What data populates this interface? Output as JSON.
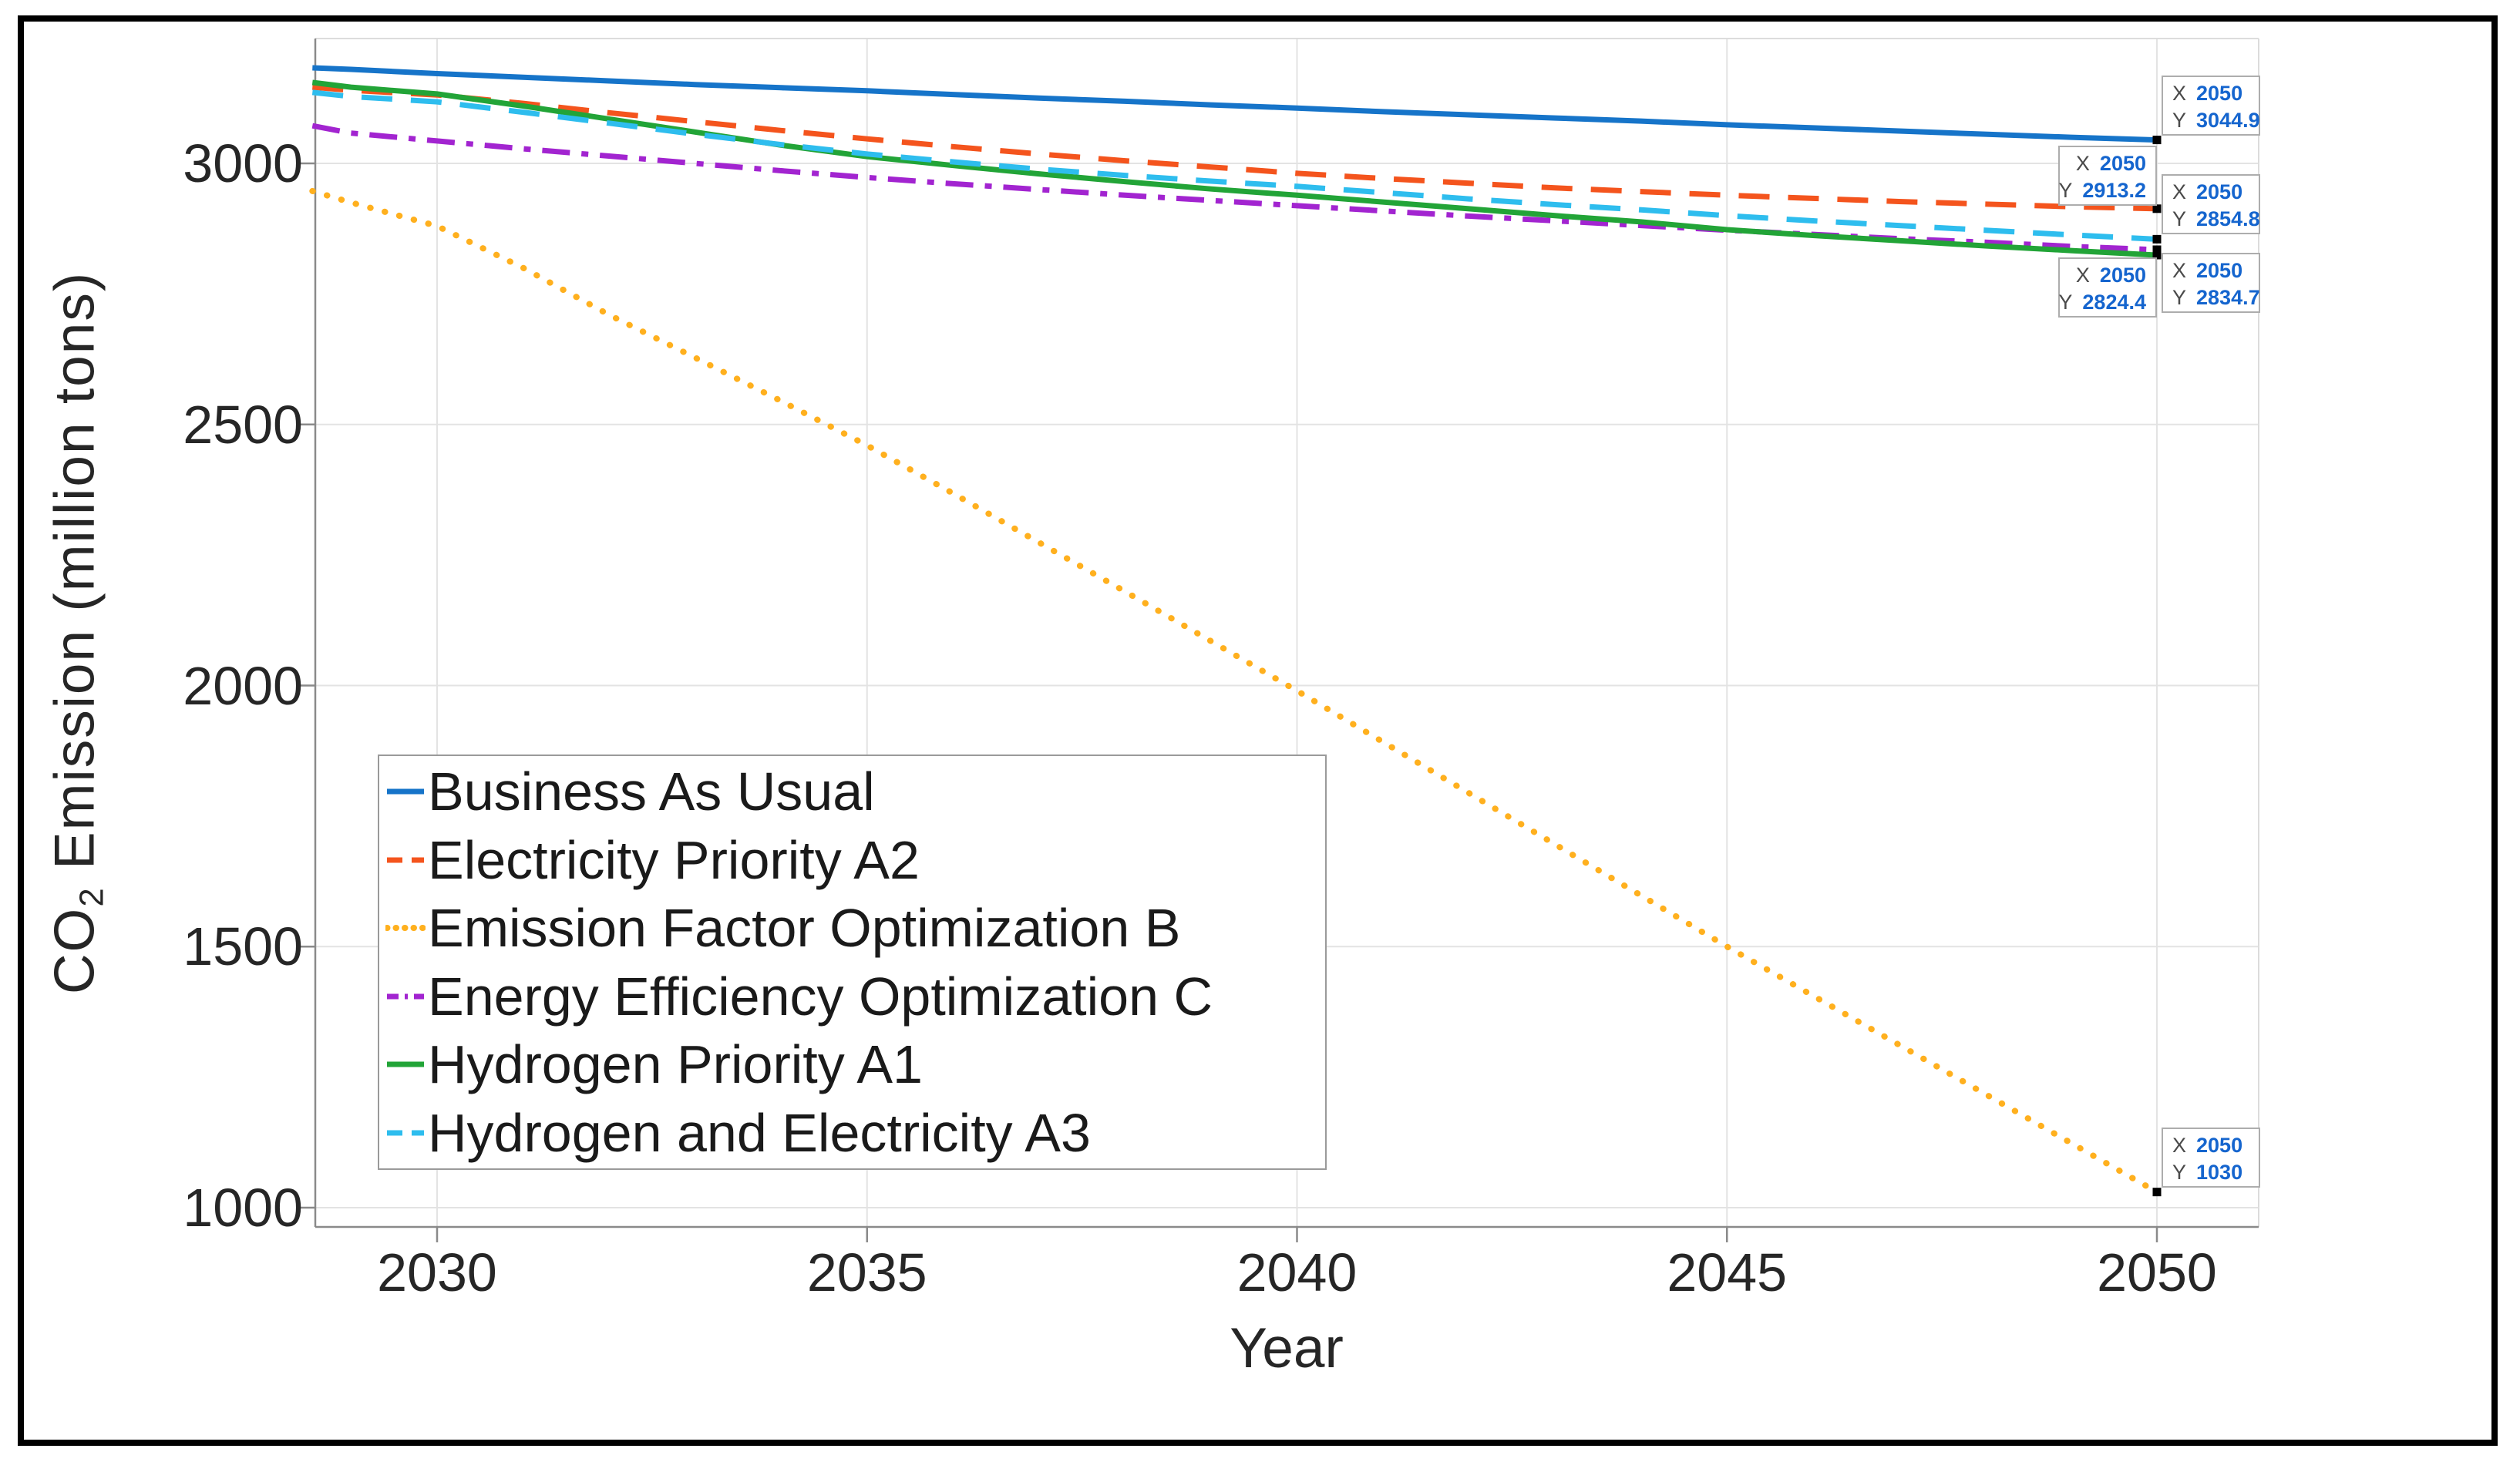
{
  "axes": {
    "xlabel": "Year",
    "ylabel_prefix": "CO",
    "ylabel_sub": "2",
    "ylabel_suffix": " Emission (million tons)",
    "x_ticks": [
      2030,
      2035,
      2040,
      2045,
      2050
    ],
    "y_ticks": [
      1000,
      1500,
      2000,
      2500,
      3000
    ],
    "grid": true
  },
  "chart_data": {
    "type": "line",
    "title": "",
    "xlabel": "Year",
    "ylabel": "CO2 Emission (million tons)",
    "xlim": [
      2028.55,
      2051.2
    ],
    "ylim": [
      960,
      3240
    ],
    "x_ticks": [
      2030,
      2035,
      2040,
      2045,
      2050
    ],
    "y_ticks": [
      1000,
      1500,
      2000,
      2500,
      3000
    ],
    "grid": true,
    "legend_position": "southwest-inside",
    "series": [
      {
        "name": "Business As Usual",
        "color": "#1674c9",
        "style": "solid",
        "points": [
          [
            2028.55,
            3183
          ],
          [
            2029,
            3180
          ],
          [
            2030,
            3172
          ],
          [
            2031,
            3165
          ],
          [
            2032,
            3158
          ],
          [
            2033,
            3151
          ],
          [
            2034,
            3145
          ],
          [
            2035,
            3139
          ],
          [
            2036,
            3132
          ],
          [
            2037,
            3125
          ],
          [
            2038,
            3119
          ],
          [
            2039,
            3112
          ],
          [
            2040,
            3106
          ],
          [
            2041,
            3099
          ],
          [
            2042,
            3093
          ],
          [
            2043,
            3087
          ],
          [
            2044,
            3081
          ],
          [
            2045,
            3074
          ],
          [
            2046,
            3068
          ],
          [
            2047,
            3062
          ],
          [
            2048,
            3056
          ],
          [
            2049,
            3050
          ],
          [
            2050,
            3044.9
          ]
        ]
      },
      {
        "name": "Electricity Priority A2",
        "color": "#f4541d",
        "style": "dashed",
        "points": [
          [
            2028.55,
            3146
          ],
          [
            2029,
            3140
          ],
          [
            2030,
            3131
          ],
          [
            2031,
            3115
          ],
          [
            2032,
            3097
          ],
          [
            2033,
            3080
          ],
          [
            2034,
            3063
          ],
          [
            2035,
            3047
          ],
          [
            2036,
            3032
          ],
          [
            2037,
            3018
          ],
          [
            2038,
            3005
          ],
          [
            2039,
            2993
          ],
          [
            2040,
            2981
          ],
          [
            2041,
            2971
          ],
          [
            2042,
            2962
          ],
          [
            2043,
            2953
          ],
          [
            2044,
            2946
          ],
          [
            2045,
            2939
          ],
          [
            2046,
            2933
          ],
          [
            2047,
            2927
          ],
          [
            2048,
            2922
          ],
          [
            2049,
            2917
          ],
          [
            2050,
            2913.2
          ]
        ]
      },
      {
        "name": "Emission Factor Optimization B",
        "color": "#ffb01e",
        "style": "dotted",
        "points": [
          [
            2028.55,
            2947
          ],
          [
            2029,
            2925
          ],
          [
            2030,
            2880
          ],
          [
            2031,
            2800
          ],
          [
            2032,
            2710
          ],
          [
            2033,
            2628
          ],
          [
            2034,
            2545
          ],
          [
            2035,
            2460
          ],
          [
            2036,
            2368
          ],
          [
            2037,
            2274
          ],
          [
            2038,
            2180
          ],
          [
            2039,
            2085
          ],
          [
            2040,
            1990
          ],
          [
            2041,
            1892
          ],
          [
            2042,
            1794
          ],
          [
            2043,
            1696
          ],
          [
            2044,
            1598
          ],
          [
            2045,
            1500
          ],
          [
            2046,
            1406
          ],
          [
            2047,
            1312
          ],
          [
            2048,
            1218
          ],
          [
            2049,
            1124
          ],
          [
            2050,
            1030
          ]
        ]
      },
      {
        "name": "Energy Efficiency Optimization C",
        "color": "#a224d0",
        "style": "dashdot",
        "points": [
          [
            2028.55,
            3072
          ],
          [
            2029,
            3058
          ],
          [
            2030,
            3043
          ],
          [
            2031,
            3028
          ],
          [
            2032,
            3014
          ],
          [
            2033,
            3000
          ],
          [
            2034,
            2986
          ],
          [
            2035,
            2973
          ],
          [
            2036,
            2961
          ],
          [
            2037,
            2950
          ],
          [
            2038,
            2939
          ],
          [
            2039,
            2929
          ],
          [
            2040,
            2919
          ],
          [
            2041,
            2909
          ],
          [
            2042,
            2899
          ],
          [
            2043,
            2890
          ],
          [
            2044,
            2881
          ],
          [
            2045,
            2872
          ],
          [
            2046,
            2864
          ],
          [
            2047,
            2856
          ],
          [
            2048,
            2849
          ],
          [
            2049,
            2841
          ],
          [
            2050,
            2834.7
          ]
        ]
      },
      {
        "name": "Hydrogen Priority A1",
        "color": "#22a437",
        "style": "solid",
        "points": [
          [
            2028.55,
            3155
          ],
          [
            2029,
            3146
          ],
          [
            2030,
            3133
          ],
          [
            2031,
            3110
          ],
          [
            2032,
            3085
          ],
          [
            2033,
            3060
          ],
          [
            2034,
            3035
          ],
          [
            2035,
            3013
          ],
          [
            2036,
            2996
          ],
          [
            2037,
            2980
          ],
          [
            2038,
            2965
          ],
          [
            2039,
            2951
          ],
          [
            2040,
            2939
          ],
          [
            2041,
            2926
          ],
          [
            2042,
            2913
          ],
          [
            2043,
            2900
          ],
          [
            2044,
            2888
          ],
          [
            2045,
            2873
          ],
          [
            2046,
            2862
          ],
          [
            2047,
            2852
          ],
          [
            2048,
            2842
          ],
          [
            2049,
            2833
          ],
          [
            2050,
            2824.4
          ]
        ]
      },
      {
        "name": "Hydrogen and Electricity A3",
        "color": "#2ebdee",
        "style": "dashed",
        "points": [
          [
            2028.55,
            3136
          ],
          [
            2029,
            3128
          ],
          [
            2030,
            3118
          ],
          [
            2031,
            3098
          ],
          [
            2032,
            3077
          ],
          [
            2033,
            3056
          ],
          [
            2034,
            3036
          ],
          [
            2035,
            3018
          ],
          [
            2036,
            3003
          ],
          [
            2037,
            2989
          ],
          [
            2038,
            2977
          ],
          [
            2039,
            2966
          ],
          [
            2040,
            2956
          ],
          [
            2041,
            2944
          ],
          [
            2042,
            2932
          ],
          [
            2043,
            2921
          ],
          [
            2044,
            2911
          ],
          [
            2045,
            2900
          ],
          [
            2046,
            2890
          ],
          [
            2047,
            2881
          ],
          [
            2048,
            2872
          ],
          [
            2049,
            2863
          ],
          [
            2050,
            2854.8
          ]
        ]
      }
    ]
  },
  "datatips": [
    {
      "series": 0,
      "x_label": "X",
      "x_value": "2050",
      "y_label": "Y",
      "y_value": "3044.9"
    },
    {
      "series": 1,
      "x_label": "X",
      "x_value": "2050",
      "y_label": "Y",
      "y_value": "2913.2"
    },
    {
      "series": 5,
      "x_label": "X",
      "x_value": "2050",
      "y_label": "Y",
      "y_value": "2854.8"
    },
    {
      "series": 3,
      "x_label": "X",
      "x_value": "2050",
      "y_label": "Y",
      "y_value": "2834.7"
    },
    {
      "series": 4,
      "x_label": "X",
      "x_value": "2050",
      "y_label": "Y",
      "y_value": "2824.4"
    },
    {
      "series": 2,
      "x_label": "X",
      "x_value": "2050",
      "y_label": "Y",
      "y_value": "1030"
    }
  ]
}
